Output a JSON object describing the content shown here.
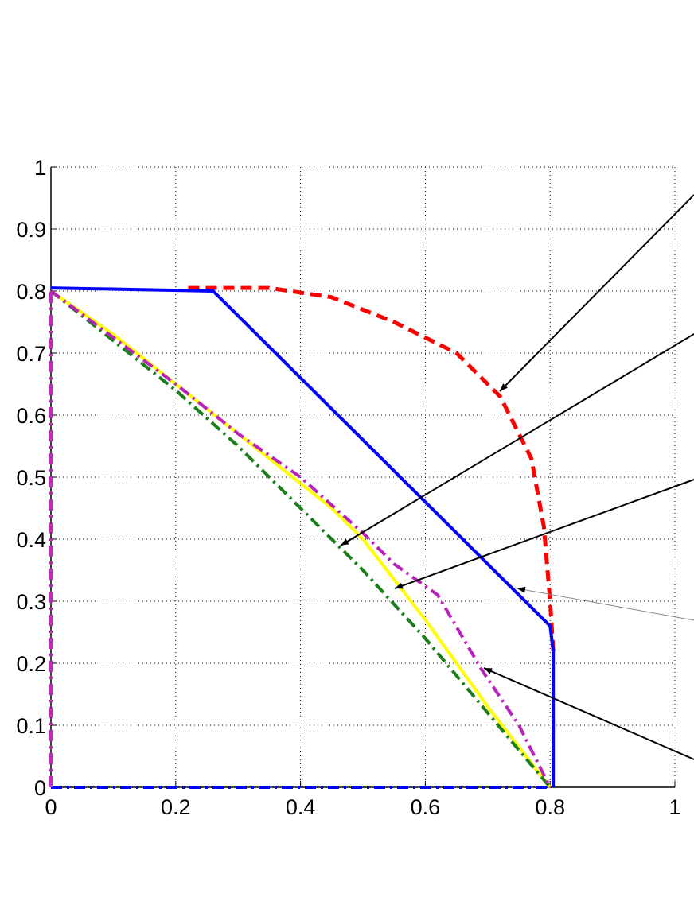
{
  "chart_data": {
    "type": "line",
    "xlim": [
      0,
      1
    ],
    "ylim": [
      0,
      1
    ],
    "xticks": [
      0,
      0.2,
      0.4,
      0.6,
      0.8,
      1
    ],
    "yticks": [
      0,
      0.1,
      0.2,
      0.3,
      0.4,
      0.5,
      0.6,
      0.7,
      0.8,
      0.9,
      1
    ],
    "grid": true,
    "series": [
      {
        "color": "#0000ff",
        "linestyle": "dashdot",
        "width": 4,
        "x": [
          0,
          0.8
        ],
        "values": [
          0,
          0
        ]
      },
      {
        "color": "#cc22cc",
        "linestyle": "dashdot",
        "width": 4,
        "x": [
          0,
          0
        ],
        "values": [
          0,
          0.8
        ]
      },
      {
        "color": "#ff0000",
        "linestyle": "dash",
        "width": 5,
        "x": [
          0.22,
          0.35,
          0.45,
          0.55,
          0.65,
          0.72,
          0.77,
          0.79,
          0.8,
          0.805
        ],
        "values": [
          0.805,
          0.805,
          0.79,
          0.75,
          0.7,
          0.63,
          0.53,
          0.42,
          0.3,
          0.22
        ]
      },
      {
        "color": "#0000ff",
        "linestyle": "solid",
        "width": 4,
        "x": [
          0,
          0.26,
          0.8,
          0.805,
          0.805
        ],
        "values": [
          0.805,
          0.8,
          0.26,
          0.22,
          0
        ]
      },
      {
        "color": "#ffff00",
        "linestyle": "solid",
        "width": 4,
        "x": [
          0,
          0.1,
          0.2,
          0.3,
          0.45,
          0.5,
          0.6,
          0.7,
          0.8
        ],
        "values": [
          0.8,
          0.73,
          0.65,
          0.57,
          0.45,
          0.4,
          0.27,
          0.13,
          0
        ]
      },
      {
        "color": "#1a7f1a",
        "linestyle": "dashdot",
        "width": 4,
        "x": [
          0,
          0.1,
          0.2,
          0.3,
          0.4,
          0.5,
          0.6,
          0.7,
          0.8
        ],
        "values": [
          0.8,
          0.72,
          0.64,
          0.55,
          0.45,
          0.35,
          0.24,
          0.12,
          0
        ]
      },
      {
        "color": "#bb22bb",
        "linestyle": "dashdot",
        "width": 4,
        "x": [
          0,
          0.2,
          0.3,
          0.4,
          0.5,
          0.55,
          0.62,
          0.69,
          0.75,
          0.8
        ],
        "values": [
          0.8,
          0.65,
          0.57,
          0.5,
          0.41,
          0.36,
          0.31,
          0.19,
          0.1,
          0
        ]
      }
    ]
  }
}
